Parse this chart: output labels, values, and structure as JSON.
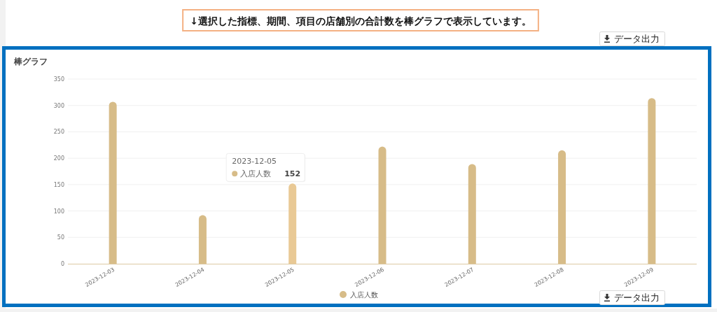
{
  "chart_data": {
    "type": "bar",
    "title": "棒グラフ",
    "annotations": [
      "↓選択した指標、期間、項目の店舗別の合計数を棒グラフで表示しています。",
      "データ出力",
      "データ出力"
    ],
    "categories": [
      "2023-12-03",
      "2023-12-04",
      "2023-12-05",
      "2023-12-06",
      "2023-12-07",
      "2023-12-08",
      "2023-12-09"
    ],
    "series": [
      {
        "name": "入店人数",
        "color": "#d7bc88",
        "colors": [
          "#d7bc88",
          "#d7bc88",
          "#e9c995",
          "#d7bc88",
          "#d7bc88",
          "#d7bc88",
          "#d7bc88"
        ],
        "values": [
          307,
          92,
          152,
          222,
          189,
          215,
          314
        ],
        "value_labels": [
          null,
          null,
          "152",
          null,
          null,
          null,
          null
        ]
      }
    ],
    "ylim": [
      0,
      350
    ],
    "yticks": [
      0,
      50,
      100,
      150,
      200,
      250,
      300,
      350
    ],
    "grid": "y",
    "legend": "bottom"
  }
}
